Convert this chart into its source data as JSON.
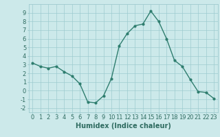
{
  "x": [
    0,
    1,
    2,
    3,
    4,
    5,
    6,
    7,
    8,
    9,
    10,
    11,
    12,
    13,
    14,
    15,
    16,
    17,
    18,
    19,
    20,
    21,
    22,
    23
  ],
  "y": [
    3.2,
    2.8,
    2.6,
    2.8,
    2.2,
    1.7,
    0.8,
    -1.3,
    -1.4,
    -0.6,
    1.4,
    5.2,
    6.6,
    7.5,
    7.7,
    9.2,
    8.0,
    6.0,
    3.5,
    2.8,
    1.3,
    -0.1,
    -0.2,
    -0.9
  ],
  "line_color": "#2e7d6e",
  "marker": "o",
  "markersize": 2,
  "linewidth": 1.0,
  "xlabel": "Humidex (Indice chaleur)",
  "xlim": [
    -0.5,
    23.5
  ],
  "ylim": [
    -2.5,
    10
  ],
  "yticks": [
    -2,
    -1,
    0,
    1,
    2,
    3,
    4,
    5,
    6,
    7,
    8,
    9
  ],
  "xticks": [
    0,
    1,
    2,
    3,
    4,
    5,
    6,
    7,
    8,
    9,
    10,
    11,
    12,
    13,
    14,
    15,
    16,
    17,
    18,
    19,
    20,
    21,
    22,
    23
  ],
  "bg_color": "#cce9ea",
  "grid_color": "#9ecbcf",
  "font_color": "#2e6b60",
  "xlabel_fontsize": 7,
  "tick_fontsize": 6
}
